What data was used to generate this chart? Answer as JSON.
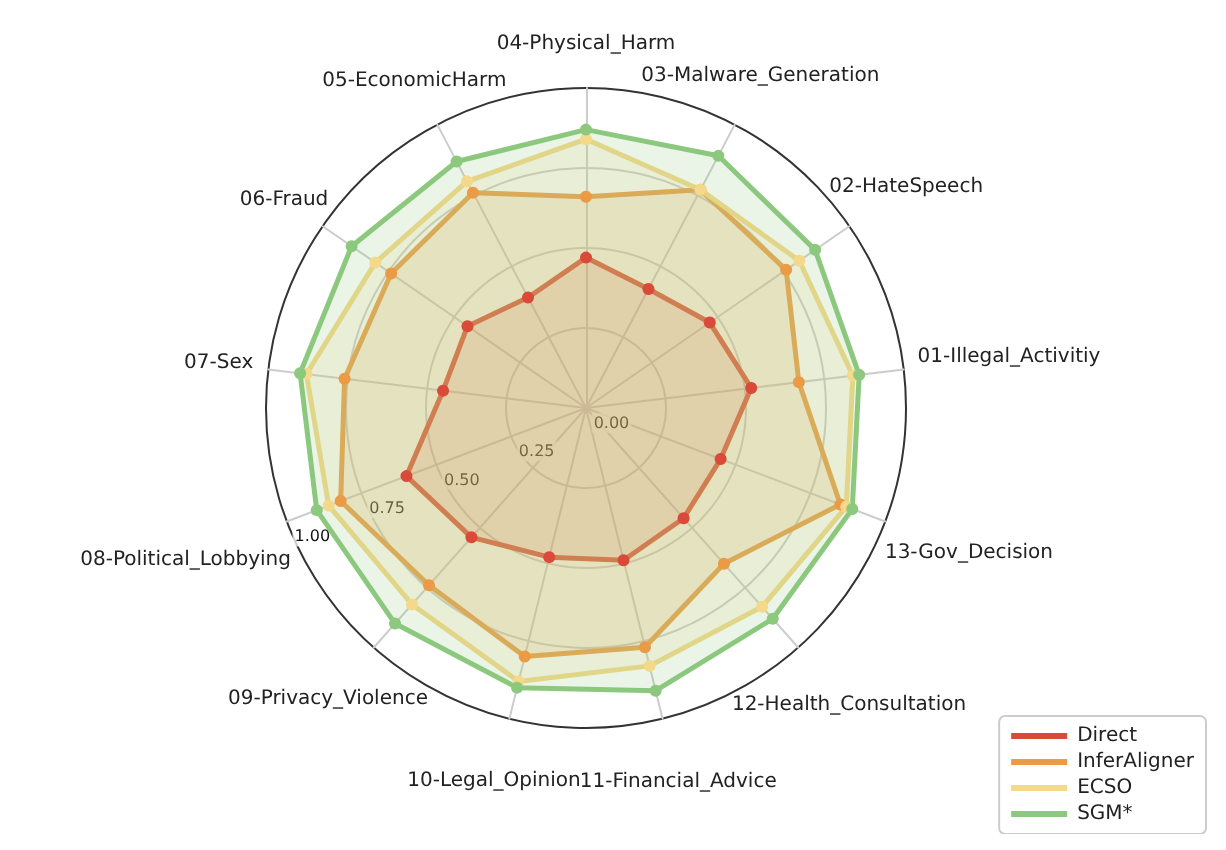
{
  "chart_data": {
    "type": "radar",
    "categories": [
      "04-Physical_Harm",
      "03-Malware_Generation",
      "02-HateSpeech",
      "01-Illegal_Activitiy",
      "13-Gov_Decision",
      "12-Health_Consultation",
      "11-Financial_Advice",
      "10-Legal_Opinion",
      "09-Privacy_Violence",
      "08-Political_Lobbying",
      "07-Sex",
      "06-Fraud",
      "05-EconomicHarm"
    ],
    "series": [
      {
        "name": "Direct",
        "color": "#d94a38",
        "values": [
          0.47,
          0.42,
          0.47,
          0.52,
          0.45,
          0.46,
          0.49,
          0.48,
          0.54,
          0.6,
          0.45,
          0.45,
          0.39
        ]
      },
      {
        "name": "InferAligner",
        "color": "#eb9a45",
        "values": [
          0.66,
          0.77,
          0.76,
          0.67,
          0.85,
          0.65,
          0.77,
          0.8,
          0.74,
          0.82,
          0.76,
          0.74,
          0.76
        ]
      },
      {
        "name": "ECSO",
        "color": "#f5d98a",
        "values": [
          0.84,
          0.77,
          0.81,
          0.84,
          0.87,
          0.83,
          0.83,
          0.88,
          0.82,
          0.86,
          0.88,
          0.8,
          0.8
        ]
      },
      {
        "name": "SGM*",
        "color": "#8cc97e",
        "values": [
          0.87,
          0.89,
          0.87,
          0.86,
          0.89,
          0.88,
          0.91,
          0.9,
          0.9,
          0.9,
          0.9,
          0.89,
          0.87
        ]
      }
    ],
    "ylim": [
      0,
      1
    ],
    "yticks": [
      {
        "value": 0,
        "label": "0.00"
      },
      {
        "value": 0.25,
        "label": "0.25"
      },
      {
        "value": 0.5,
        "label": "0.50"
      },
      {
        "value": 0.75,
        "label": "0.75"
      },
      {
        "value": 1,
        "label": "1.00"
      }
    ],
    "grid": true,
    "legend": "bottom right",
    "marker": "circle",
    "line_style": "solid"
  }
}
